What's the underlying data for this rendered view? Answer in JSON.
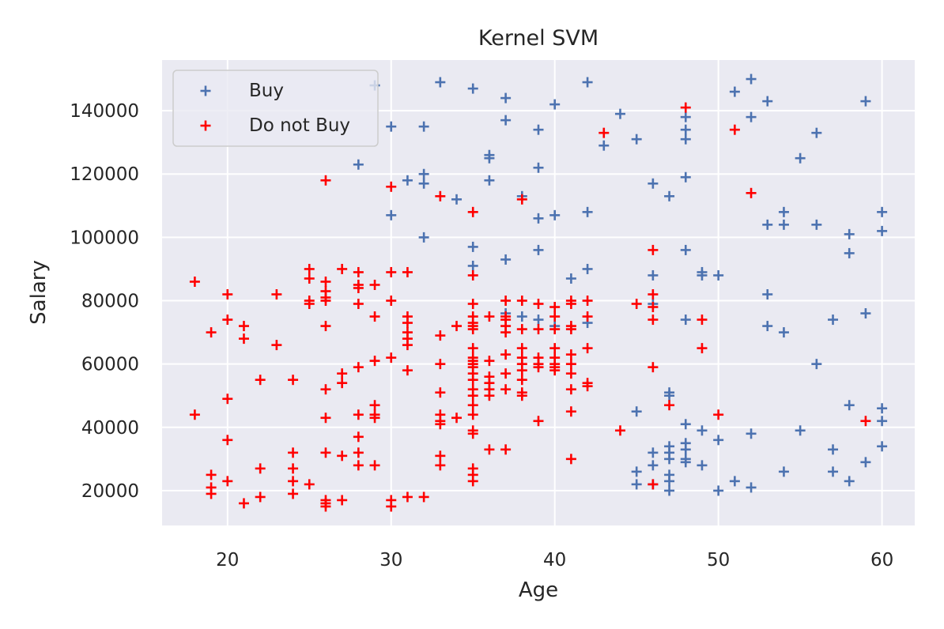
{
  "chart_data": {
    "type": "scatter",
    "title": "Kernel SVM",
    "xlabel": "Age",
    "ylabel": "Salary",
    "xlim": [
      16,
      62
    ],
    "ylim": [
      9000,
      156000
    ],
    "xticks": [
      20,
      30,
      40,
      50,
      60
    ],
    "yticks": [
      20000,
      40000,
      60000,
      80000,
      100000,
      120000,
      140000
    ],
    "grid": true,
    "marker": "plus",
    "legend": {
      "position": "top-left"
    },
    "series": [
      {
        "name": "Buy",
        "color": "#4c72b0",
        "points": [
          [
            29,
            148000
          ],
          [
            33,
            149000
          ],
          [
            35,
            147000
          ],
          [
            37,
            144000
          ],
          [
            40,
            142000
          ],
          [
            42,
            149000
          ],
          [
            44,
            139000
          ],
          [
            45,
            131000
          ],
          [
            43,
            129000
          ],
          [
            48,
            138000
          ],
          [
            48,
            134000
          ],
          [
            48,
            131000
          ],
          [
            51,
            146000
          ],
          [
            52,
            150000
          ],
          [
            52,
            138000
          ],
          [
            53,
            143000
          ],
          [
            56,
            133000
          ],
          [
            59,
            143000
          ],
          [
            28,
            123000
          ],
          [
            30,
            135000
          ],
          [
            32,
            135000
          ],
          [
            37,
            137000
          ],
          [
            39,
            134000
          ],
          [
            31,
            118000
          ],
          [
            32,
            120000
          ],
          [
            32,
            117000
          ],
          [
            36,
            126000
          ],
          [
            36,
            125000
          ],
          [
            36,
            118000
          ],
          [
            39,
            122000
          ],
          [
            38,
            113000
          ],
          [
            48,
            119000
          ],
          [
            46,
            117000
          ],
          [
            47,
            113000
          ],
          [
            55,
            125000
          ],
          [
            30,
            107000
          ],
          [
            34,
            112000
          ],
          [
            39,
            106000
          ],
          [
            40,
            107000
          ],
          [
            42,
            108000
          ],
          [
            32,
            100000
          ],
          [
            53,
            104000
          ],
          [
            54,
            104000
          ],
          [
            54,
            108000
          ],
          [
            56,
            104000
          ],
          [
            58,
            101000
          ],
          [
            60,
            108000
          ],
          [
            60,
            102000
          ],
          [
            35,
            97000
          ],
          [
            35,
            91000
          ],
          [
            37,
            93000
          ],
          [
            39,
            96000
          ],
          [
            41,
            87000
          ],
          [
            42,
            90000
          ],
          [
            46,
            88000
          ],
          [
            48,
            96000
          ],
          [
            49,
            88000
          ],
          [
            49,
            89000
          ],
          [
            50,
            88000
          ],
          [
            58,
            95000
          ],
          [
            46,
            79000
          ],
          [
            48,
            74000
          ],
          [
            53,
            82000
          ],
          [
            53,
            72000
          ],
          [
            54,
            70000
          ],
          [
            57,
            74000
          ],
          [
            59,
            76000
          ],
          [
            38,
            75000
          ],
          [
            39,
            74000
          ],
          [
            40,
            72000
          ],
          [
            42,
            73000
          ],
          [
            37,
            76000
          ],
          [
            56,
            60000
          ],
          [
            47,
            50000
          ],
          [
            47,
            51000
          ],
          [
            48,
            41000
          ],
          [
            48,
            35000
          ],
          [
            48,
            33000
          ],
          [
            48,
            30000
          ],
          [
            48,
            29000
          ],
          [
            49,
            39000
          ],
          [
            50,
            36000
          ],
          [
            52,
            38000
          ],
          [
            55,
            39000
          ],
          [
            58,
            47000
          ],
          [
            60,
            46000
          ],
          [
            60,
            42000
          ],
          [
            45,
            45000
          ],
          [
            46,
            32000
          ],
          [
            46,
            28000
          ],
          [
            47,
            34000
          ],
          [
            47,
            32000
          ],
          [
            47,
            30000
          ],
          [
            47,
            25000
          ],
          [
            47,
            23000
          ],
          [
            47,
            20000
          ],
          [
            49,
            28000
          ],
          [
            45,
            26000
          ],
          [
            45,
            22000
          ],
          [
            46,
            22000
          ],
          [
            50,
            20000
          ],
          [
            51,
            23000
          ],
          [
            52,
            21000
          ],
          [
            54,
            26000
          ],
          [
            57,
            33000
          ],
          [
            57,
            26000
          ],
          [
            58,
            23000
          ],
          [
            59,
            29000
          ],
          [
            60,
            34000
          ]
        ]
      },
      {
        "name": "Do not Buy",
        "color": "#ff0000",
        "points": [
          [
            48,
            141000
          ],
          [
            43,
            133000
          ],
          [
            51,
            134000
          ],
          [
            52,
            114000
          ],
          [
            26,
            118000
          ],
          [
            30,
            116000
          ],
          [
            33,
            113000
          ],
          [
            38,
            112000
          ],
          [
            35,
            108000
          ],
          [
            18,
            86000
          ],
          [
            20,
            82000
          ],
          [
            25,
            90000
          ],
          [
            25,
            87000
          ],
          [
            25,
            80000
          ],
          [
            25,
            79000
          ],
          [
            26,
            86000
          ],
          [
            26,
            83000
          ],
          [
            26,
            81000
          ],
          [
            26,
            80000
          ],
          [
            27,
            90000
          ],
          [
            28,
            89000
          ],
          [
            28,
            85000
          ],
          [
            28,
            84000
          ],
          [
            28,
            79000
          ],
          [
            23,
            82000
          ],
          [
            29,
            85000
          ],
          [
            30,
            89000
          ],
          [
            31,
            89000
          ],
          [
            30,
            80000
          ],
          [
            35,
            88000
          ],
          [
            35,
            79000
          ],
          [
            35,
            75000
          ],
          [
            35,
            73000
          ],
          [
            35,
            72000
          ],
          [
            35,
            71000
          ],
          [
            37,
            80000
          ],
          [
            37,
            75000
          ],
          [
            37,
            74000
          ],
          [
            37,
            72000
          ],
          [
            37,
            70000
          ],
          [
            38,
            80000
          ],
          [
            39,
            79000
          ],
          [
            40,
            78000
          ],
          [
            40,
            75000
          ],
          [
            41,
            80000
          ],
          [
            41,
            79000
          ],
          [
            42,
            80000
          ],
          [
            42,
            75000
          ],
          [
            36,
            75000
          ],
          [
            34,
            72000
          ],
          [
            33,
            69000
          ],
          [
            31,
            75000
          ],
          [
            31,
            73000
          ],
          [
            31,
            70000
          ],
          [
            31,
            68000
          ],
          [
            31,
            66000
          ],
          [
            29,
            75000
          ],
          [
            19,
            70000
          ],
          [
            20,
            74000
          ],
          [
            21,
            72000
          ],
          [
            21,
            68000
          ],
          [
            23,
            66000
          ],
          [
            26,
            72000
          ],
          [
            38,
            71000
          ],
          [
            39,
            71000
          ],
          [
            40,
            71000
          ],
          [
            41,
            71000
          ],
          [
            41,
            72000
          ],
          [
            45,
            79000
          ],
          [
            46,
            82000
          ],
          [
            46,
            78000
          ],
          [
            46,
            74000
          ],
          [
            46,
            96000
          ],
          [
            49,
            74000
          ],
          [
            49,
            65000
          ],
          [
            46,
            59000
          ],
          [
            47,
            47000
          ],
          [
            50,
            44000
          ],
          [
            59,
            42000
          ],
          [
            44,
            39000
          ],
          [
            41,
            30000
          ],
          [
            38,
            65000
          ],
          [
            38,
            62000
          ],
          [
            38,
            60000
          ],
          [
            38,
            58000
          ],
          [
            38,
            55000
          ],
          [
            38,
            51000
          ],
          [
            38,
            50000
          ],
          [
            39,
            62000
          ],
          [
            39,
            60000
          ],
          [
            39,
            59000
          ],
          [
            39,
            42000
          ],
          [
            40,
            65000
          ],
          [
            40,
            62000
          ],
          [
            40,
            60000
          ],
          [
            40,
            59000
          ],
          [
            40,
            58000
          ],
          [
            41,
            63000
          ],
          [
            41,
            60000
          ],
          [
            41,
            57000
          ],
          [
            41,
            52000
          ],
          [
            41,
            45000
          ],
          [
            42,
            65000
          ],
          [
            42,
            54000
          ],
          [
            42,
            53000
          ],
          [
            37,
            63000
          ],
          [
            37,
            57000
          ],
          [
            37,
            52000
          ],
          [
            36,
            61000
          ],
          [
            36,
            56000
          ],
          [
            36,
            54000
          ],
          [
            36,
            52000
          ],
          [
            36,
            50000
          ],
          [
            35,
            65000
          ],
          [
            35,
            62000
          ],
          [
            35,
            61000
          ],
          [
            35,
            60000
          ],
          [
            35,
            59000
          ],
          [
            35,
            57000
          ],
          [
            35,
            55000
          ],
          [
            35,
            52000
          ],
          [
            35,
            50000
          ],
          [
            35,
            47000
          ],
          [
            35,
            44000
          ],
          [
            35,
            39000
          ],
          [
            35,
            38000
          ],
          [
            35,
            27000
          ],
          [
            35,
            25000
          ],
          [
            35,
            23000
          ],
          [
            33,
            60000
          ],
          [
            33,
            51000
          ],
          [
            33,
            44000
          ],
          [
            33,
            42000
          ],
          [
            33,
            41000
          ],
          [
            33,
            31000
          ],
          [
            33,
            28000
          ],
          [
            34,
            43000
          ],
          [
            31,
            58000
          ],
          [
            30,
            62000
          ],
          [
            29,
            61000
          ],
          [
            29,
            47000
          ],
          [
            29,
            44000
          ],
          [
            29,
            43000
          ],
          [
            28,
            59000
          ],
          [
            28,
            44000
          ],
          [
            28,
            37000
          ],
          [
            28,
            32000
          ],
          [
            27,
            57000
          ],
          [
            27,
            54000
          ],
          [
            26,
            52000
          ],
          [
            26,
            43000
          ],
          [
            22,
            55000
          ],
          [
            24,
            55000
          ],
          [
            20,
            49000
          ],
          [
            18,
            44000
          ],
          [
            20,
            36000
          ],
          [
            19,
            25000
          ],
          [
            19,
            21000
          ],
          [
            19,
            19000
          ],
          [
            20,
            23000
          ],
          [
            21,
            16000
          ],
          [
            22,
            27000
          ],
          [
            22,
            18000
          ],
          [
            24,
            32000
          ],
          [
            24,
            27000
          ],
          [
            24,
            23000
          ],
          [
            24,
            19000
          ],
          [
            25,
            22000
          ],
          [
            26,
            32000
          ],
          [
            27,
            31000
          ],
          [
            28,
            28000
          ],
          [
            29,
            28000
          ],
          [
            26,
            17000
          ],
          [
            26,
            16000
          ],
          [
            26,
            15000
          ],
          [
            27,
            17000
          ],
          [
            30,
            17000
          ],
          [
            30,
            15000
          ],
          [
            31,
            18000
          ],
          [
            32,
            18000
          ],
          [
            36,
            33000
          ],
          [
            37,
            33000
          ],
          [
            46,
            22000
          ]
        ]
      }
    ]
  }
}
